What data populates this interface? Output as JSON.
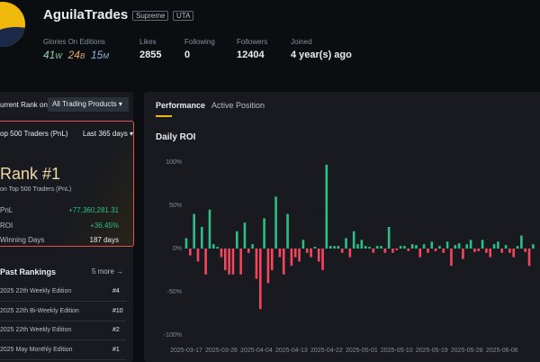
{
  "profile": {
    "name": "AguilaTrades",
    "badges": [
      "Supreme",
      "UTA"
    ],
    "stats": {
      "glories": {
        "label": "Glories On Editions",
        "items": [
          {
            "count": "41",
            "unit": "W"
          },
          {
            "count": "24",
            "unit": "B"
          },
          {
            "count": "15",
            "unit": "M"
          }
        ]
      },
      "likes": {
        "label": "Likes",
        "value": "2855"
      },
      "following": {
        "label": "Following",
        "value": "0"
      },
      "followers": {
        "label": "Followers",
        "value": "12404"
      },
      "joined": {
        "label": "Joined",
        "value": "4 year(s) ago"
      }
    }
  },
  "rank_panel": {
    "label": "urrent Rank on",
    "product": "All Trading Products",
    "board": "op 500 Traders (PnL)",
    "period": "Last 365 days",
    "rank": "Rank #1",
    "rank_sub": "on Top 500 Traders (PnL)",
    "rows": [
      {
        "label": "PnL",
        "value": "+77,360,281.31"
      },
      {
        "label": "ROI",
        "value": "+36.45%"
      },
      {
        "label": "Winning Days",
        "value": "187 days"
      }
    ],
    "past_title": "Past Rankings",
    "more": "5 more →",
    "past": [
      {
        "edition": "2025 22th Weekly Edition",
        "rank": "#4"
      },
      {
        "edition": "2025 22th Bi-Weekly Edition",
        "rank": "#10"
      },
      {
        "edition": "2025 22th Weekly Edition",
        "rank": "#2"
      },
      {
        "edition": "2025 May Monthly Edition",
        "rank": "#1"
      }
    ]
  },
  "tabs": [
    "Performance",
    "Active Position"
  ],
  "chart_data": {
    "type": "bar",
    "title": "Daily ROI",
    "categories": [
      "2025-03-17",
      null,
      null,
      null,
      null,
      null,
      null,
      null,
      null,
      "2025-03-26",
      null,
      null,
      null,
      null,
      null,
      null,
      null,
      null,
      "2025-04-04",
      null,
      null,
      null,
      null,
      null,
      null,
      null,
      null,
      "2025-04-13",
      null,
      null,
      null,
      null,
      null,
      null,
      null,
      null,
      "2025-04-22",
      null,
      null,
      null,
      null,
      null,
      null,
      null,
      null,
      "2025-05-01",
      null,
      null,
      null,
      null,
      null,
      null,
      null,
      null,
      "2025-05-10",
      null,
      null,
      null,
      null,
      null,
      null,
      null,
      null,
      "2025-05-19",
      null,
      null,
      null,
      null,
      null,
      null,
      null,
      null,
      "2025-05-28",
      null,
      null,
      null,
      null,
      null,
      null,
      null,
      null,
      "2025-06-06",
      null,
      null,
      null,
      null,
      null,
      null,
      null,
      null
    ],
    "values": [
      12,
      -8,
      40,
      -15,
      25,
      -30,
      45,
      5,
      2,
      -10,
      -25,
      -30,
      -30,
      20,
      -30,
      30,
      -5,
      5,
      -35,
      -70,
      35,
      -40,
      -25,
      60,
      -10,
      -30,
      40,
      -20,
      -10,
      -15,
      10,
      -5,
      -10,
      2,
      -15,
      -25,
      97,
      3,
      3,
      3,
      -5,
      12,
      -10,
      20,
      5,
      10,
      3,
      2,
      -5,
      3,
      3,
      -5,
      25,
      -5,
      -2,
      3,
      3,
      -3,
      5,
      4,
      -10,
      5,
      -5,
      8,
      -3,
      3,
      -5,
      8,
      -20,
      4,
      6,
      -12,
      5,
      10,
      -4,
      -3,
      10,
      -5,
      -10,
      5,
      8,
      -5,
      4,
      -5,
      -10,
      3,
      15,
      -4,
      -20,
      5
    ],
    "positive_color": "#2ebd85",
    "negative_color": "#f6465d",
    "ylim": [
      -100,
      100
    ],
    "yticks": [
      {
        "value": -100,
        "label": "-100%"
      },
      {
        "value": -50,
        "label": "-50%"
      },
      {
        "value": 0,
        "label": "0%"
      },
      {
        "value": 50,
        "label": "50%"
      },
      {
        "value": 100,
        "label": "100%"
      }
    ],
    "grid": true
  }
}
